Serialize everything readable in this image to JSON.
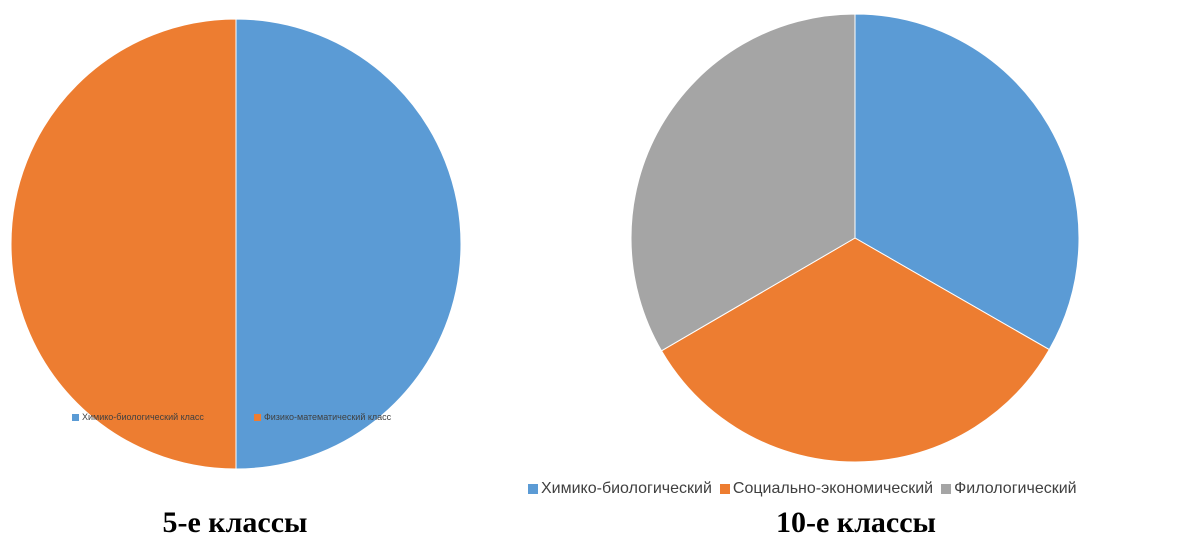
{
  "chart_data": [
    {
      "type": "pie",
      "categories": [
        "Химико-биологический класс",
        "Физико-математический класс"
      ],
      "values": [
        50,
        50
      ],
      "colors": [
        "#5B9BD5",
        "#ED7D31"
      ],
      "caption": "5-е классы",
      "legend": "bottom"
    },
    {
      "type": "pie",
      "categories": [
        "Химико-биологический",
        "Социально-экономический",
        "Филологический"
      ],
      "values": [
        33.3,
        33.3,
        33.4
      ],
      "colors": [
        "#5B9BD5",
        "#ED7D31",
        "#A5A5A5"
      ],
      "caption": "10-е классы",
      "legend": "bottom"
    }
  ]
}
